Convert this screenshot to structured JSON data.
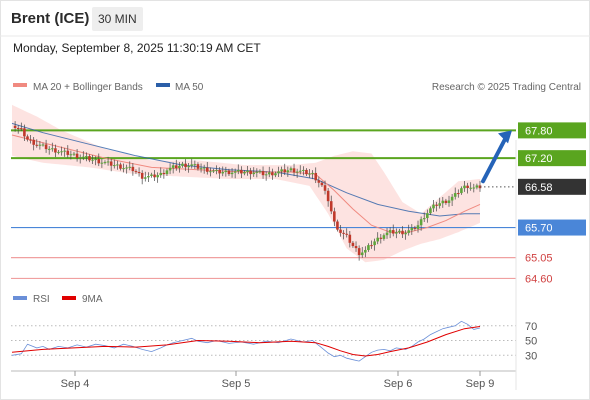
{
  "header": {
    "title": "Brent (ICE)",
    "timeframe": "30 MIN"
  },
  "timestamp": "Monday, September 8, 2025 11:30:19 AM CET",
  "legend": {
    "ma20": "MA 20 + Bollinger Bands",
    "ma50": "MA 50",
    "credit": "Research © 2025 Trading Central",
    "rsi": "RSI",
    "rsi_ma": "9MA"
  },
  "colors": {
    "green_levels": "#5aa51f",
    "blue_level": "#4a86d8",
    "red_levels": "#f0a0a0",
    "current_price_bg": "#333333",
    "ma20": "#f08a80",
    "ma50": "#2b5fa8",
    "bands": "#fde0de",
    "rsi": "#6a8fd8",
    "rsi_ma": "#e00000",
    "arrow": "#2563b8",
    "candle_up": "#5fa63a",
    "candle_down": "#c0392b"
  },
  "chart_data": {
    "type": "candlestick",
    "y_range": [
      64.35,
      68.5
    ],
    "x_labels": [
      "Sep 4",
      "Sep 5",
      "Sep 6",
      "Sep 9"
    ],
    "current_price": "66.58",
    "levels": [
      {
        "value": 67.8,
        "label": "67.80",
        "kind": "resistance"
      },
      {
        "value": 67.2,
        "label": "67.20",
        "kind": "resistance"
      },
      {
        "value": 65.7,
        "label": "65.70",
        "kind": "pivot"
      },
      {
        "value": 65.05,
        "label": "65.05",
        "kind": "support"
      },
      {
        "value": 64.6,
        "label": "64.60",
        "kind": "support"
      }
    ],
    "close_path": [
      [
        0,
        67.9
      ],
      [
        3,
        67.8
      ],
      [
        5,
        67.6
      ],
      [
        8,
        67.5
      ],
      [
        10,
        67.45
      ],
      [
        12,
        67.4
      ],
      [
        15,
        67.35
      ],
      [
        18,
        67.3
      ],
      [
        21,
        67.25
      ],
      [
        24,
        67.2
      ],
      [
        27,
        67.15
      ],
      [
        30,
        67.1
      ],
      [
        33,
        67.05
      ],
      [
        36,
        67.0
      ],
      [
        39,
        66.95
      ],
      [
        42,
        66.8
      ],
      [
        45,
        66.8
      ],
      [
        48,
        66.85
      ],
      [
        50,
        66.95
      ],
      [
        52,
        67.0
      ],
      [
        55,
        67.05
      ],
      [
        58,
        67.05
      ],
      [
        60,
        67.0
      ],
      [
        63,
        66.95
      ],
      [
        66,
        66.9
      ],
      [
        70,
        66.9
      ],
      [
        74,
        66.9
      ],
      [
        78,
        66.9
      ],
      [
        82,
        66.85
      ],
      [
        86,
        66.9
      ],
      [
        90,
        66.95
      ],
      [
        94,
        66.9
      ],
      [
        97,
        66.85
      ],
      [
        100,
        66.6
      ],
      [
        102,
        66.3
      ],
      [
        104,
        65.8
      ],
      [
        106,
        65.6
      ],
      [
        108,
        65.5
      ],
      [
        110,
        65.3
      ],
      [
        112,
        65.15
      ],
      [
        114,
        65.2
      ],
      [
        116,
        65.35
      ],
      [
        118,
        65.45
      ],
      [
        120,
        65.55
      ],
      [
        122,
        65.6
      ],
      [
        124,
        65.6
      ],
      [
        127,
        65.6
      ],
      [
        129,
        65.65
      ],
      [
        131,
        65.75
      ],
      [
        133,
        65.95
      ],
      [
        135,
        66.1
      ],
      [
        137,
        66.2
      ],
      [
        139,
        66.25
      ],
      [
        141,
        66.3
      ],
      [
        143,
        66.4
      ],
      [
        145,
        66.55
      ],
      [
        147,
        66.6
      ],
      [
        149,
        66.55
      ],
      [
        151,
        66.58
      ]
    ],
    "ma20": [
      [
        0,
        67.7
      ],
      [
        15,
        67.45
      ],
      [
        30,
        67.2
      ],
      [
        45,
        67.0
      ],
      [
        60,
        66.95
      ],
      [
        75,
        66.9
      ],
      [
        90,
        66.9
      ],
      [
        98,
        66.85
      ],
      [
        104,
        66.5
      ],
      [
        110,
        66.1
      ],
      [
        116,
        65.75
      ],
      [
        122,
        65.6
      ],
      [
        128,
        65.6
      ],
      [
        134,
        65.7
      ],
      [
        140,
        65.85
      ],
      [
        146,
        66.05
      ],
      [
        151,
        66.2
      ]
    ],
    "ma50": [
      [
        0,
        67.95
      ],
      [
        10,
        67.75
      ],
      [
        25,
        67.5
      ],
      [
        40,
        67.25
      ],
      [
        55,
        67.05
      ],
      [
        70,
        66.95
      ],
      [
        85,
        66.9
      ],
      [
        98,
        66.75
      ],
      [
        108,
        66.45
      ],
      [
        118,
        66.2
      ],
      [
        128,
        66.05
      ],
      [
        138,
        65.95
      ],
      [
        146,
        66.0
      ],
      [
        151,
        66.0
      ]
    ],
    "bb_upper": [
      [
        0,
        68.35
      ],
      [
        8,
        68.1
      ],
      [
        16,
        67.8
      ],
      [
        30,
        67.4
      ],
      [
        45,
        67.15
      ],
      [
        60,
        67.15
      ],
      [
        75,
        67.05
      ],
      [
        90,
        67.05
      ],
      [
        98,
        67.1
      ],
      [
        104,
        67.25
      ],
      [
        110,
        67.35
      ],
      [
        116,
        67.3
      ],
      [
        120,
        66.9
      ],
      [
        126,
        66.25
      ],
      [
        132,
        66.0
      ],
      [
        138,
        66.35
      ],
      [
        144,
        66.7
      ],
      [
        151,
        66.75
      ]
    ],
    "bb_lower": [
      [
        0,
        67.25
      ],
      [
        10,
        67.1
      ],
      [
        25,
        67.0
      ],
      [
        40,
        66.85
      ],
      [
        55,
        66.8
      ],
      [
        70,
        66.75
      ],
      [
        85,
        66.75
      ],
      [
        96,
        66.6
      ],
      [
        102,
        66.0
      ],
      [
        108,
        65.25
      ],
      [
        114,
        64.95
      ],
      [
        120,
        65.0
      ],
      [
        126,
        65.2
      ],
      [
        132,
        65.35
      ],
      [
        138,
        65.45
      ],
      [
        144,
        65.6
      ],
      [
        151,
        65.8
      ]
    ],
    "forecast_arrow": {
      "from": 66.7,
      "to": 67.8
    },
    "rsi": {
      "y_ticks": [
        "70",
        "50",
        "30"
      ],
      "tick_values": [
        70,
        50,
        30
      ],
      "y_range": [
        10,
        90
      ],
      "values": [
        [
          0,
          30
        ],
        [
          3,
          32
        ],
        [
          5,
          45
        ],
        [
          8,
          40
        ],
        [
          10,
          42
        ],
        [
          12,
          38
        ],
        [
          15,
          42
        ],
        [
          18,
          40
        ],
        [
          21,
          44
        ],
        [
          24,
          41
        ],
        [
          27,
          45
        ],
        [
          30,
          43
        ],
        [
          33,
          40
        ],
        [
          36,
          45
        ],
        [
          39,
          42
        ],
        [
          42,
          38
        ],
        [
          45,
          35
        ],
        [
          48,
          40
        ],
        [
          50,
          44
        ],
        [
          52,
          47
        ],
        [
          55,
          50
        ],
        [
          58,
          53
        ],
        [
          60,
          49
        ],
        [
          63,
          47
        ],
        [
          66,
          50
        ],
        [
          70,
          46
        ],
        [
          74,
          48
        ],
        [
          78,
          45
        ],
        [
          82,
          49
        ],
        [
          86,
          47
        ],
        [
          90,
          52
        ],
        [
          94,
          48
        ],
        [
          97,
          50
        ],
        [
          100,
          40
        ],
        [
          102,
          33
        ],
        [
          104,
          28
        ],
        [
          106,
          30
        ],
        [
          108,
          26
        ],
        [
          110,
          24
        ],
        [
          112,
          22
        ],
        [
          114,
          28
        ],
        [
          116,
          34
        ],
        [
          118,
          37
        ],
        [
          120,
          38
        ],
        [
          122,
          36
        ],
        [
          124,
          40
        ],
        [
          127,
          38
        ],
        [
          129,
          42
        ],
        [
          131,
          48
        ],
        [
          133,
          52
        ],
        [
          135,
          58
        ],
        [
          137,
          62
        ],
        [
          139,
          66
        ],
        [
          141,
          68
        ],
        [
          143,
          70
        ],
        [
          145,
          76
        ],
        [
          147,
          72
        ],
        [
          149,
          65
        ],
        [
          151,
          67
        ]
      ],
      "ma": [
        [
          0,
          34
        ],
        [
          10,
          38
        ],
        [
          20,
          40
        ],
        [
          30,
          42
        ],
        [
          40,
          41
        ],
        [
          50,
          44
        ],
        [
          60,
          50
        ],
        [
          70,
          49
        ],
        [
          80,
          47
        ],
        [
          90,
          49
        ],
        [
          98,
          47
        ],
        [
          102,
          42
        ],
        [
          106,
          36
        ],
        [
          110,
          31
        ],
        [
          114,
          29
        ],
        [
          118,
          31
        ],
        [
          122,
          35
        ],
        [
          128,
          40
        ],
        [
          134,
          48
        ],
        [
          140,
          58
        ],
        [
          146,
          66
        ],
        [
          151,
          69
        ]
      ]
    }
  }
}
